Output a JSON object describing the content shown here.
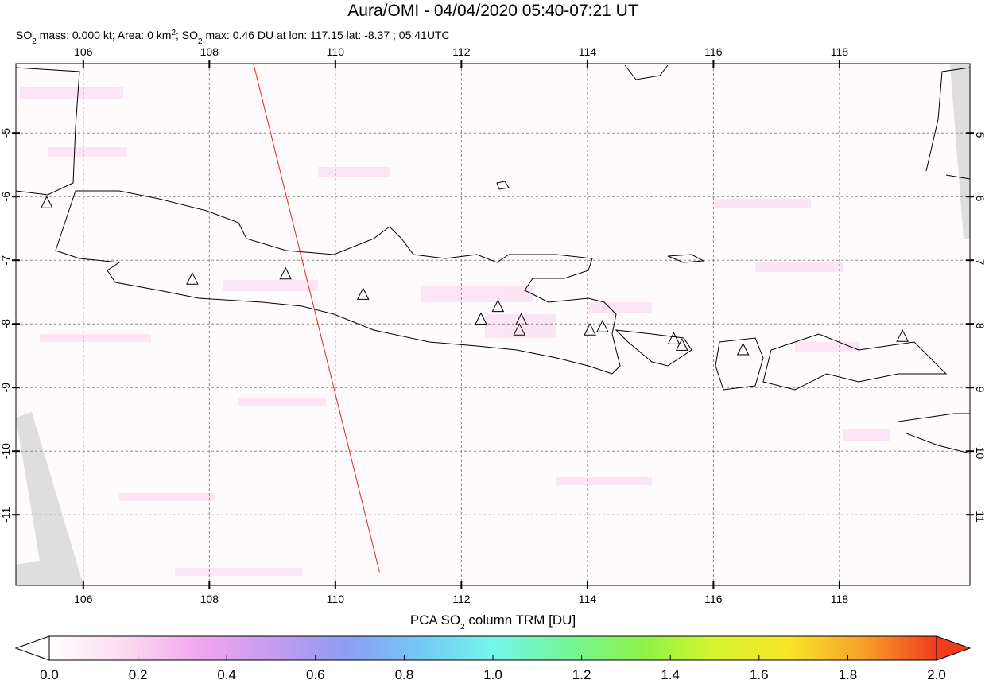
{
  "map": {
    "title": "Aura/OMI - 04/04/2020 05:40-07:21 UT",
    "subtitle": [
      {
        "text": "SO"
      },
      {
        "text": "2",
        "script": "sub"
      },
      {
        "text": " mass: 0.000 kt; Area: 0 km"
      },
      {
        "text": "2",
        "script": "super"
      },
      {
        "text": "; SO"
      },
      {
        "text": "2",
        "script": "sub"
      },
      {
        "text": " max: 0.46 DU at lon: 117.15 lat: -8.37 ; 05:41UTC"
      }
    ],
    "lonlim": [
      104.93,
      120.07
    ],
    "latlim": [
      -12.11,
      -3.91
    ],
    "lonticks": [
      106,
      108,
      110,
      112,
      114,
      116,
      118
    ],
    "latticks": [
      -5,
      -6,
      -7,
      -8,
      -9,
      -10,
      -11
    ],
    "grid": true,
    "track": {
      "lon": [
        108.7,
        110.7
      ],
      "lat": [
        -3.91,
        -11.9
      ],
      "color": "#e8231c"
    },
    "volcanoes": {
      "lon": [
        105.42,
        107.73,
        109.21,
        110.44,
        112.31,
        112.58,
        112.95,
        112.92,
        114.04,
        114.24,
        115.37,
        115.5,
        116.47,
        119.0
      ],
      "lat": [
        -6.1,
        -7.3,
        -7.22,
        -7.54,
        -7.93,
        -7.73,
        -7.94,
        -8.1,
        -8.1,
        -8.05,
        -8.24,
        -8.34,
        -8.41,
        -8.2
      ]
    },
    "colorbar": {
      "label": [
        {
          "text": "PCA SO"
        },
        {
          "text": "2",
          "script": "sub"
        },
        {
          "text": " column TRM [DU]"
        }
      ],
      "lim": [
        0,
        2
      ],
      "colors": [
        "#ffffff",
        "#fbdcef",
        "#f2a8ee",
        "#c79cf0",
        "#8f9cf4",
        "#74c8f6",
        "#74f6ea",
        "#74f69a",
        "#8cf24a",
        "#d6f52e",
        "#f8e52a",
        "#f8a12a",
        "#f03c1c"
      ],
      "ticks": [
        {
          "value": 0,
          "label": "0.0"
        },
        {
          "value": 0.2,
          "label": "0.2"
        },
        {
          "value": 0.4,
          "label": "0.4"
        },
        {
          "value": 0.6,
          "label": "0.6"
        },
        {
          "value": 0.8,
          "label": "0.8"
        },
        {
          "value": 1,
          "label": "1.0"
        },
        {
          "value": 1.2,
          "label": "1.2"
        },
        {
          "value": 1.4,
          "label": "1.4"
        },
        {
          "value": 1.6,
          "label": "1.6"
        },
        {
          "value": 1.8,
          "label": "1.8"
        },
        {
          "value": 2,
          "label": "2.0"
        }
      ]
    }
  }
}
